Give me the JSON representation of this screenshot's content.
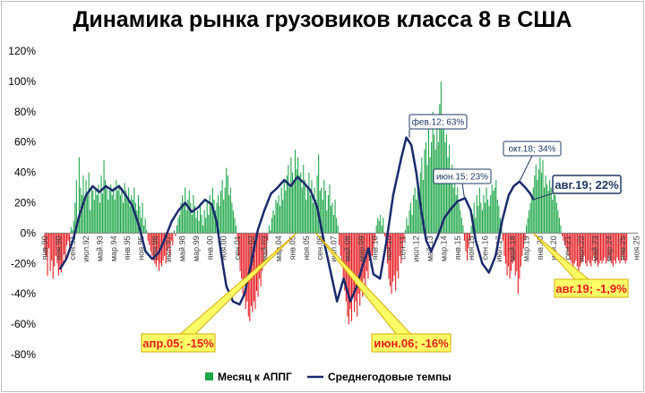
{
  "chart_data": {
    "type": "bar+line",
    "title": "Динамика рынка грузовиков класса 8 в США",
    "xlabel": "",
    "ylabel": "",
    "ylim": [
      -0.8,
      1.2
    ],
    "y_ticks": [
      "120%",
      "100%",
      "80%",
      "60%",
      "40%",
      "20%",
      "0%",
      "-20%",
      "-40%",
      "-60%",
      "-80%"
    ],
    "y_tick_values": [
      1.2,
      1.0,
      0.8,
      0.6,
      0.4,
      0.2,
      0.0,
      -0.2,
      -0.4,
      -0.6,
      -0.8
    ],
    "x_range": [
      1990.0,
      2025.917
    ],
    "x_ticks": [
      {
        "label": "янв.90",
        "x": 1990.0
      },
      {
        "label": "ноя.90",
        "x": 1990.83
      },
      {
        "label": "сен.91",
        "x": 1991.67
      },
      {
        "label": "июл.92",
        "x": 1992.5
      },
      {
        "label": "май.93",
        "x": 1993.33
      },
      {
        "label": "мар.94",
        "x": 1994.17
      },
      {
        "label": "янв.95",
        "x": 1995.0
      },
      {
        "label": "ноя.95",
        "x": 1995.83
      },
      {
        "label": "сен.96",
        "x": 1996.67
      },
      {
        "label": "июл.97",
        "x": 1997.5
      },
      {
        "label": "май.98",
        "x": 1998.33
      },
      {
        "label": "мар.99",
        "x": 1999.17
      },
      {
        "label": "янв.00",
        "x": 2000.0
      },
      {
        "label": "ноя.00",
        "x": 2000.83
      },
      {
        "label": "сен.01",
        "x": 2001.67
      },
      {
        "label": "июл.02",
        "x": 2002.5
      },
      {
        "label": "май.03",
        "x": 2003.33
      },
      {
        "label": "мар.04",
        "x": 2004.17
      },
      {
        "label": "янв.05",
        "x": 2005.0
      },
      {
        "label": "ноя.05",
        "x": 2005.83
      },
      {
        "label": "сен.06",
        "x": 2006.67
      },
      {
        "label": "июл.07",
        "x": 2007.5
      },
      {
        "label": "май.08",
        "x": 2008.33
      },
      {
        "label": "мар.09",
        "x": 2009.17
      },
      {
        "label": "янв.10",
        "x": 2010.0
      },
      {
        "label": "ноя.10",
        "x": 2010.83
      },
      {
        "label": "сен.11",
        "x": 2011.67
      },
      {
        "label": "июл.12",
        "x": 2012.5
      },
      {
        "label": "май.13",
        "x": 2013.33
      },
      {
        "label": "мар.14",
        "x": 2014.17
      },
      {
        "label": "янв.15",
        "x": 2015.0
      },
      {
        "label": "ноя.15",
        "x": 2015.83
      },
      {
        "label": "сен.16",
        "x": 2016.67
      },
      {
        "label": "июл.17",
        "x": 2017.5
      },
      {
        "label": "май.18",
        "x": 2018.33
      },
      {
        "label": "мар.19",
        "x": 2019.17
      },
      {
        "label": "янв.20",
        "x": 2020.0
      },
      {
        "label": "ноя.20",
        "x": 2020.83
      },
      {
        "label": "сен.21",
        "x": 2021.67
      },
      {
        "label": "июл.22",
        "x": 2022.5
      },
      {
        "label": "май.23",
        "x": 2023.33
      },
      {
        "label": "мар.24",
        "x": 2024.17
      },
      {
        "label": "янв.25",
        "x": 2025.0
      },
      {
        "label": "ноя.25",
        "x": 2025.83
      }
    ],
    "monthly_series": {
      "name": "Месяц к АППГ",
      "color_positive": "#1fa64a",
      "color_negative": "#e8191f",
      "x_start": 1990.0,
      "x_step": 0.08333,
      "values": [
        -0.12,
        -0.15,
        -0.28,
        -0.1,
        -0.25,
        -0.18,
        -0.3,
        -0.22,
        -0.15,
        -0.2,
        -0.28,
        -0.24,
        -0.26,
        -0.22,
        -0.14,
        -0.18,
        -0.08,
        -0.05,
        -0.09,
        0.04,
        0.02,
        0.08,
        0.2,
        0.35,
        0.1,
        0.5,
        0.3,
        0.25,
        0.38,
        0.2,
        0.35,
        0.25,
        0.4,
        0.15,
        0.3,
        0.28,
        0.22,
        0.3,
        0.25,
        0.32,
        0.2,
        0.38,
        0.26,
        0.48,
        0.35,
        0.3,
        0.22,
        0.28,
        0.32,
        0.25,
        0.3,
        0.22,
        0.35,
        0.28,
        0.32,
        0.25,
        0.3,
        0.2,
        0.33,
        0.28,
        0.22,
        0.3,
        0.18,
        0.25,
        0.22,
        0.3,
        0.2,
        0.15,
        0.25,
        0.18,
        0.1,
        0.2,
        0.05,
        0.1,
        0.02,
        -0.05,
        -0.08,
        -0.12,
        -0.15,
        -0.18,
        -0.2,
        -0.22,
        -0.18,
        -0.25,
        -0.2,
        -0.22,
        -0.18,
        -0.15,
        -0.2,
        -0.12,
        -0.1,
        -0.15,
        -0.05,
        -0.08,
        0.02,
        -0.02,
        0.05,
        0.1,
        0.12,
        0.2,
        0.25,
        0.18,
        0.3,
        0.15,
        0.22,
        0.28,
        0.2,
        0.12,
        0.25,
        0.18,
        0.1,
        0.15,
        0.08,
        0.2,
        0.12,
        0.05,
        0.15,
        0.1,
        0.2,
        0.12,
        0.25,
        0.18,
        0.3,
        0.22,
        0.15,
        0.2,
        0.25,
        0.18,
        0.28,
        0.35,
        0.22,
        0.3,
        0.43,
        0.38,
        0.25,
        0.3,
        0.2,
        0.15,
        0.1,
        0.05,
        -0.05,
        -0.15,
        -0.25,
        -0.3,
        -0.4,
        -0.35,
        -0.5,
        -0.45,
        -0.55,
        -0.58,
        -0.48,
        -0.52,
        -0.45,
        -0.5,
        -0.38,
        -0.42,
        -0.3,
        -0.35,
        -0.25,
        -0.2,
        -0.1,
        -0.15,
        -0.05,
        0.05,
        0.02,
        0.1,
        0.15,
        0.12,
        0.22,
        0.2,
        0.25,
        0.18,
        0.3,
        0.22,
        0.35,
        0.28,
        0.38,
        0.45,
        0.3,
        0.5,
        0.4,
        0.35,
        0.55,
        0.42,
        0.5,
        0.38,
        0.4,
        0.3,
        0.45,
        0.35,
        0.22,
        0.3,
        0.4,
        0.25,
        0.35,
        0.2,
        0.3,
        0.22,
        0.38,
        0.52,
        0.28,
        0.3,
        0.22,
        0.35,
        0.28,
        0.15,
        0.25,
        0.32,
        0.18,
        0.2,
        0.12,
        0.22,
        0.1,
        0.05,
        -0.08,
        -0.15,
        -0.22,
        -0.3,
        -0.38,
        -0.45,
        -0.55,
        -0.6,
        -0.5,
        -0.58,
        -0.42,
        -0.52,
        -0.45,
        -0.55,
        -0.4,
        -0.48,
        -0.35,
        -0.42,
        -0.3,
        -0.38,
        -0.25,
        -0.3,
        -0.18,
        -0.22,
        -0.15,
        -0.1,
        -0.05,
        0.05,
        0.1,
        0.08,
        0.12,
        0.05,
        0.1,
        -0.02,
        -0.1,
        -0.2,
        -0.3,
        -0.35,
        -0.4,
        -0.32,
        -0.28,
        -0.38,
        -0.25,
        -0.3,
        -0.15,
        -0.2,
        -0.1,
        -0.05,
        0.02,
        0.1,
        0.05,
        0.15,
        0.2,
        0.12,
        0.25,
        0.3,
        0.22,
        0.35,
        0.28,
        0.4,
        0.5,
        0.35,
        0.55,
        0.6,
        0.45,
        0.7,
        0.5,
        0.6,
        0.8,
        0.65,
        0.55,
        0.7,
        0.6,
        0.85,
        1.0,
        0.68,
        0.75,
        0.6,
        0.65,
        0.5,
        0.58,
        0.4,
        0.45,
        0.3,
        0.35,
        0.25,
        0.3,
        0.2,
        0.15,
        0.1,
        0.05,
        -0.05,
        -0.12,
        -0.18,
        -0.1,
        -0.05,
        0.05,
        0.12,
        0.2,
        0.1,
        0.25,
        0.18,
        0.3,
        0.2,
        0.15,
        0.25,
        0.2,
        0.3,
        0.22,
        0.18,
        0.25,
        0.32,
        0.28,
        0.3,
        0.35,
        0.22,
        0.18,
        0.1,
        0.05,
        -0.05,
        -0.15,
        -0.2,
        -0.28,
        -0.22,
        -0.3,
        -0.25,
        -0.2,
        -0.18,
        -0.28,
        -0.25,
        -0.4,
        -0.3,
        -0.22,
        -0.15,
        -0.1,
        -0.05,
        0.05,
        0.1,
        0.15,
        0.2,
        0.25,
        0.3,
        0.38,
        0.45,
        0.35,
        0.42,
        0.5,
        0.4,
        0.48,
        0.3,
        0.38,
        0.32,
        0.28,
        0.35,
        0.3,
        0.22,
        0.28,
        0.25,
        0.2,
        0.15,
        0.1,
        0.05,
        -0.02,
        -0.05,
        -0.08,
        -0.1,
        -0.12,
        -0.15,
        -0.18,
        -0.2,
        -0.22,
        -0.2,
        -0.18,
        -0.22,
        -0.25,
        -0.22,
        -0.2,
        -0.18,
        -0.15,
        -0.2,
        -0.22,
        -0.18,
        -0.2,
        -0.22,
        -0.18,
        -0.15,
        -0.2,
        -0.18,
        -0.22,
        -0.2,
        -0.18,
        -0.2,
        -0.18,
        -0.16,
        -0.2,
        -0.18,
        -0.15,
        -0.18,
        -0.2,
        -0.22,
        -0.18,
        -0.2,
        -0.16,
        -0.18,
        -0.2,
        -0.18,
        -0.15,
        -0.18,
        -0.2,
        -0.18
      ]
    },
    "annual_series": {
      "name": "Среднегодовые темпы",
      "color": "#1a2a6c",
      "points": [
        [
          1990.9,
          -0.24
        ],
        [
          1991.3,
          -0.17
        ],
        [
          1991.7,
          -0.05
        ],
        [
          1992.1,
          0.12
        ],
        [
          1992.5,
          0.25
        ],
        [
          1992.9,
          0.31
        ],
        [
          1993.3,
          0.27
        ],
        [
          1993.7,
          0.31
        ],
        [
          1994.1,
          0.28
        ],
        [
          1994.5,
          0.31
        ],
        [
          1994.9,
          0.25
        ],
        [
          1995.3,
          0.18
        ],
        [
          1995.7,
          0.05
        ],
        [
          1996.1,
          -0.12
        ],
        [
          1996.5,
          -0.17
        ],
        [
          1996.9,
          -0.13
        ],
        [
          1997.3,
          -0.03
        ],
        [
          1997.7,
          0.08
        ],
        [
          1998.1,
          0.15
        ],
        [
          1998.5,
          0.2
        ],
        [
          1998.9,
          0.14
        ],
        [
          1999.3,
          0.17
        ],
        [
          1999.7,
          0.22
        ],
        [
          2000.1,
          0.19
        ],
        [
          2000.4,
          0.08
        ],
        [
          2000.7,
          -0.15
        ],
        [
          2001.0,
          -0.35
        ],
        [
          2001.4,
          -0.45
        ],
        [
          2001.8,
          -0.47
        ],
        [
          2002.1,
          -0.4
        ],
        [
          2002.5,
          -0.2
        ],
        [
          2002.9,
          0.02
        ],
        [
          2003.3,
          0.15
        ],
        [
          2003.7,
          0.26
        ],
        [
          2004.1,
          0.3
        ],
        [
          2004.5,
          0.35
        ],
        [
          2004.9,
          0.31
        ],
        [
          2005.3,
          0.37
        ],
        [
          2005.7,
          0.33
        ],
        [
          2006.1,
          0.28
        ],
        [
          2006.5,
          0.17
        ],
        [
          2006.9,
          -0.05
        ],
        [
          2007.3,
          -0.25
        ],
        [
          2007.7,
          -0.45
        ],
        [
          2008.1,
          -0.3
        ],
        [
          2008.5,
          -0.45
        ],
        [
          2008.9,
          -0.35
        ],
        [
          2009.2,
          -0.23
        ],
        [
          2009.6,
          -0.1
        ],
        [
          2009.9,
          -0.27
        ],
        [
          2010.3,
          -0.3
        ],
        [
          2010.7,
          -0.05
        ],
        [
          2011.1,
          0.25
        ],
        [
          2011.6,
          0.5
        ],
        [
          2011.9,
          0.63
        ],
        [
          2012.2,
          0.58
        ],
        [
          2012.5,
          0.4
        ],
        [
          2012.8,
          0.15
        ],
        [
          2013.1,
          -0.05
        ],
        [
          2013.4,
          -0.12
        ],
        [
          2013.8,
          -0.02
        ],
        [
          2014.2,
          0.1
        ],
        [
          2014.6,
          0.16
        ],
        [
          2015.0,
          0.21
        ],
        [
          2015.45,
          0.23
        ],
        [
          2015.8,
          0.15
        ],
        [
          2016.1,
          -0.05
        ],
        [
          2016.5,
          -0.2
        ],
        [
          2016.9,
          -0.26
        ],
        [
          2017.3,
          -0.15
        ],
        [
          2017.7,
          0.08
        ],
        [
          2018.1,
          0.25
        ],
        [
          2018.4,
          0.31
        ],
        [
          2018.75,
          0.34
        ],
        [
          2019.1,
          0.3
        ],
        [
          2019.4,
          0.26
        ],
        [
          2019.6,
          0.22
        ]
      ]
    },
    "annotations": [
      {
        "label": "фев.12; 63%",
        "x": 2012.08,
        "y": 0.63,
        "style": "blue"
      },
      {
        "label": "июн.15; 23%",
        "x": 2015.42,
        "y": 0.23,
        "style": "blue"
      },
      {
        "label": "окт.18; 34%",
        "x": 2018.75,
        "y": 0.34,
        "style": "blue"
      },
      {
        "label": "авг.19; 22%",
        "x": 2019.58,
        "y": 0.22,
        "style": "blue-big"
      },
      {
        "label": "апр.05; -15%",
        "x": 2005.25,
        "y": 0,
        "style": "yellow"
      },
      {
        "label": "июн.06; -16%",
        "x": 2006.42,
        "y": 0,
        "style": "yellow"
      },
      {
        "label": "авг.19; -1,9%",
        "x": 2019.58,
        "y": 0,
        "style": "yellow"
      }
    ],
    "legend": {
      "placement": "bottom",
      "items": [
        {
          "label": "Месяц к АППГ",
          "color": "#1fa64a",
          "kind": "bar"
        },
        {
          "label": "Среднегодовые темпы",
          "color": "#1a2a6c",
          "kind": "line"
        }
      ]
    },
    "grid": false
  }
}
